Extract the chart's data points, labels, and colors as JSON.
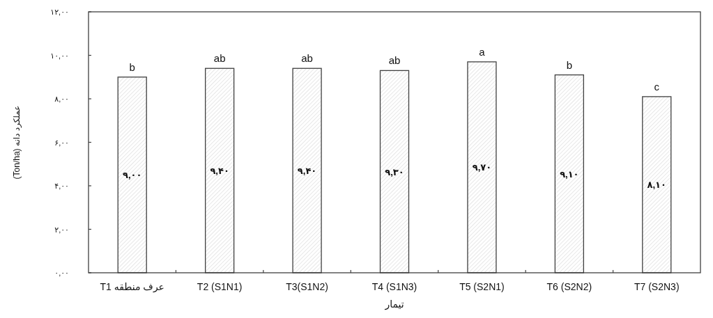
{
  "chart_data": {
    "type": "bar",
    "xlabel": "تیمار",
    "ylabel": "عملکرد دانه (Ton/ha)",
    "categories": [
      "T1 عرف منطقه",
      "T2 (S1N1)",
      "T3(S1N2)",
      "T4 (S1N3)",
      "T5 (S2N1)",
      "T6 (S2N2)",
      "T7 (S2N3)"
    ],
    "values": [
      9.0,
      9.4,
      9.4,
      9.3,
      9.7,
      9.1,
      8.1
    ],
    "value_labels": [
      "۹,۰۰",
      "۹,۴۰",
      "۹,۴۰",
      "۹,۳۰",
      "۹,۷۰",
      "۹,۱۰",
      "۸,۱۰"
    ],
    "color": "#404040",
    "ylim": [
      0,
      12
    ],
    "yticks": [
      {
        "value": 0,
        "label": "۰,۰۰"
      },
      {
        "value": 2,
        "label": "۲,۰۰"
      },
      {
        "value": 4,
        "label": "۴,۰۰"
      },
      {
        "value": 6,
        "label": "۶,۰۰"
      },
      {
        "value": 8,
        "label": "۸,۰۰"
      },
      {
        "value": 10,
        "label": "۱۰,۰۰"
      },
      {
        "value": 12,
        "label": "۱۲,۰۰"
      }
    ],
    "grid": false,
    "annotations": [
      {
        "text": "b",
        "x": "T1 عرف منطقه",
        "y": 9.0
      },
      {
        "text": "ab",
        "x": "T2 (S1N1)",
        "y": 9.4
      },
      {
        "text": "ab",
        "x": "T3(S1N2)",
        "y": 9.4
      },
      {
        "text": "ab",
        "x": "T4 (S1N3)",
        "y": 9.3
      },
      {
        "text": "a",
        "x": "T5 (S2N1)",
        "y": 9.7
      },
      {
        "text": "b",
        "x": "T6 (S2N2)",
        "y": 9.1
      },
      {
        "text": "c",
        "x": "T7 (S2N3)",
        "y": 8.1
      }
    ]
  }
}
